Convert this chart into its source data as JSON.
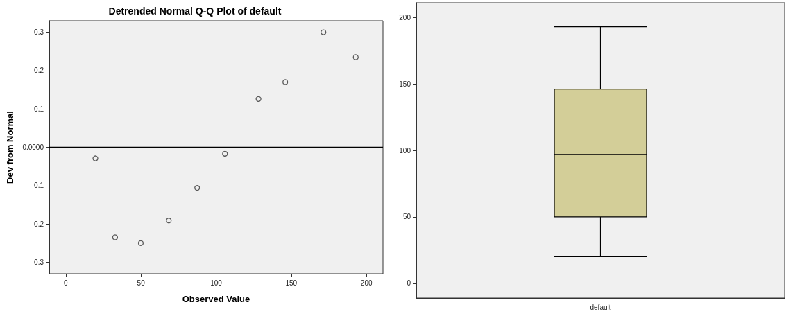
{
  "chart_data": [
    {
      "type": "scatter",
      "title": "Detrended Normal Q-Q Plot of default",
      "xlabel": "Observed Value",
      "ylabel": "Dev from Normal",
      "x": [
        19.7,
        32.8,
        49.9,
        68.5,
        87.4,
        105.9,
        128.2,
        146.0,
        171.4,
        192.9
      ],
      "series": [
        {
          "color": "#333333",
          "values": [
            -0.029,
            -0.235,
            -0.25,
            -0.191,
            -0.106,
            -0.017,
            0.126,
            0.17,
            0.3,
            0.235
          ]
        }
      ],
      "xlim": [
        -11,
        211
      ],
      "xticks": [
        0,
        50,
        100,
        150,
        200
      ],
      "ylim": [
        -0.33,
        0.33
      ],
      "yticks": [
        -0.3,
        -0.2,
        -0.1,
        {
          "value": 0,
          "label": "0.0000"
        },
        0.1,
        0.2,
        0.3
      ],
      "ref_lines": [
        {
          "axis": "y",
          "value": 0,
          "color": "#000000"
        }
      ],
      "marker": "circle",
      "grid": false
    },
    {
      "type": "box",
      "categories": [
        "default"
      ],
      "series": [
        {
          "color": "#d3ce98",
          "boxes": [
            {
              "low": 20,
              "q1": 50,
              "median": 97,
              "q3": 146,
              "high": 193
            }
          ]
        }
      ],
      "ylim": [
        -11,
        211
      ],
      "yticks": [
        0,
        50,
        100,
        150,
        200
      ],
      "grid": false
    }
  ]
}
